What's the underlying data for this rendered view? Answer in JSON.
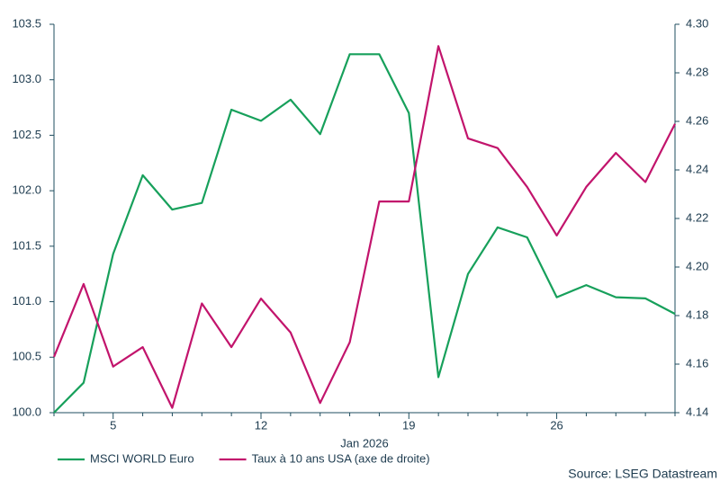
{
  "chart_data": {
    "type": "line",
    "categories": [
      null,
      null,
      "5",
      null,
      null,
      null,
      null,
      "12",
      null,
      null,
      null,
      null,
      "19",
      null,
      null,
      null,
      null,
      "26",
      null,
      null,
      null,
      null
    ],
    "x_label": "Jan 2026",
    "series": [
      {
        "name": "MSCI WORLD Euro",
        "color": "#17a05b",
        "axis": "y",
        "values": [
          100.0,
          100.27,
          101.43,
          102.14,
          101.83,
          101.89,
          102.73,
          102.63,
          102.82,
          102.51,
          103.23,
          103.23,
          102.7,
          100.32,
          101.25,
          101.67,
          101.58,
          101.04,
          101.15,
          101.04,
          101.03,
          100.89
        ]
      },
      {
        "name": "Taux à 10 ans USA (axe de droite)",
        "color": "#c2146c",
        "axis": "y2",
        "values": [
          4.163,
          4.193,
          4.159,
          4.167,
          4.142,
          4.185,
          4.167,
          4.187,
          4.173,
          4.144,
          4.169,
          4.227,
          4.227,
          4.291,
          4.253,
          4.249,
          4.233,
          4.213,
          4.233,
          4.247,
          4.235,
          4.259
        ]
      }
    ],
    "ylim": [
      100.0,
      103.5
    ],
    "yticks": [
      {
        "value": 100,
        "label": "100.0"
      },
      100.5,
      {
        "value": 101,
        "label": "101.0"
      },
      101.5,
      {
        "value": 102,
        "label": "102.0"
      },
      102.5,
      {
        "value": 103,
        "label": "103.0"
      },
      103.5
    ],
    "y2lim": [
      4.14,
      4.3
    ],
    "y2ticks": [
      4.14,
      4.16,
      4.18,
      {
        "value": 4.2,
        "label": "4.20"
      },
      4.22,
      4.24,
      4.26,
      4.28,
      {
        "value": 4.3,
        "label": "4.30"
      }
    ],
    "grid": false,
    "legend": "bottom-left",
    "source": "Source: LSEG Datastream"
  }
}
